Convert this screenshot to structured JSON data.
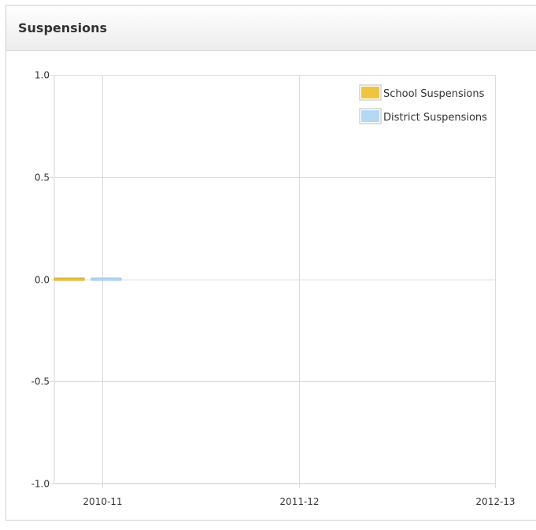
{
  "panel": {
    "title": "Suspensions"
  },
  "chart_data": {
    "type": "bar",
    "categories": [
      "2010-11",
      "2011-12",
      "2012-13"
    ],
    "ylim": [
      -1.0,
      1.0
    ],
    "yticks": [
      1.0,
      0.5,
      0.0,
      -0.5,
      -1.0
    ],
    "ytick_labels": [
      "1.0",
      "0.5",
      "0.0",
      "-0.5",
      "-1.0"
    ],
    "grid": true,
    "legend_position": "top-right",
    "series": [
      {
        "name": "School Suspensions",
        "color": "#f0c43f",
        "stroke": "#d4a82a",
        "values": [
          0,
          null,
          null
        ]
      },
      {
        "name": "District Suspensions",
        "color": "#b4d9f7",
        "stroke": "#9cc3e4",
        "values": [
          0,
          null,
          null
        ]
      }
    ]
  }
}
